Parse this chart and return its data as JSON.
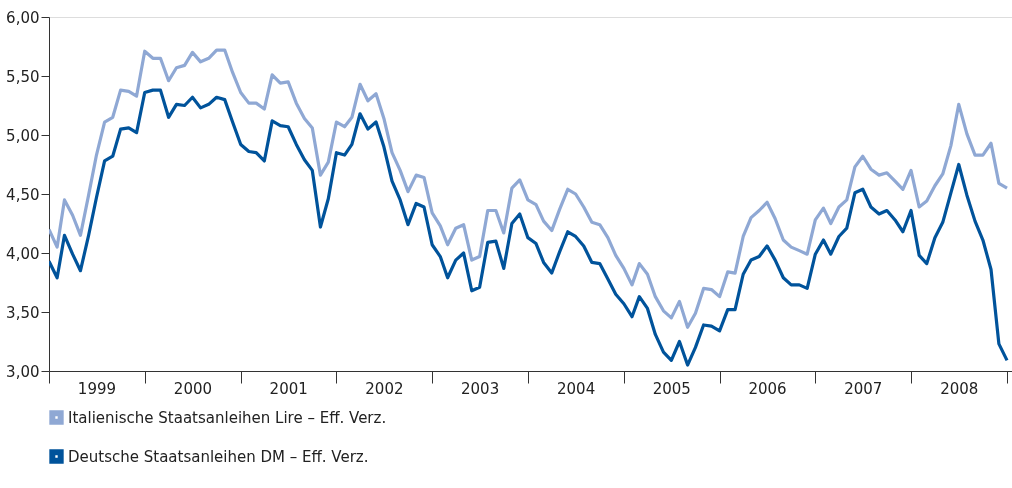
{
  "chart_data": {
    "type": "line",
    "x": [
      "1999-01",
      "1999-02",
      "1999-03",
      "1999-04",
      "1999-05",
      "1999-06",
      "1999-07",
      "1999-08",
      "1999-09",
      "1999-10",
      "1999-11",
      "1999-12",
      "2000-01",
      "2000-02",
      "2000-03",
      "2000-04",
      "2000-05",
      "2000-06",
      "2000-07",
      "2000-08",
      "2000-09",
      "2000-10",
      "2000-11",
      "2000-12",
      "2001-01",
      "2001-02",
      "2001-03",
      "2001-04",
      "2001-05",
      "2001-06",
      "2001-07",
      "2001-08",
      "2001-09",
      "2001-10",
      "2001-11",
      "2001-12",
      "2002-01",
      "2002-02",
      "2002-03",
      "2002-04",
      "2002-05",
      "2002-06",
      "2002-07",
      "2002-08",
      "2002-09",
      "2002-10",
      "2002-11",
      "2002-12",
      "2003-01",
      "2003-02",
      "2003-03",
      "2003-04",
      "2003-05",
      "2003-06",
      "2003-07",
      "2003-08",
      "2003-09",
      "2003-10",
      "2003-11",
      "2003-12",
      "2004-01",
      "2004-02",
      "2004-03",
      "2004-04",
      "2004-05",
      "2004-06",
      "2004-07",
      "2004-08",
      "2004-09",
      "2004-10",
      "2004-11",
      "2004-12",
      "2005-01",
      "2005-02",
      "2005-03",
      "2005-04",
      "2005-05",
      "2005-06",
      "2005-07",
      "2005-08",
      "2005-09",
      "2005-10",
      "2005-11",
      "2005-12",
      "2006-01",
      "2006-02",
      "2006-03",
      "2006-04",
      "2006-05",
      "2006-06",
      "2006-07",
      "2006-08",
      "2006-09",
      "2006-10",
      "2006-11",
      "2006-12",
      "2007-01",
      "2007-02",
      "2007-03",
      "2007-04",
      "2007-05",
      "2007-06",
      "2007-07",
      "2007-08",
      "2007-09",
      "2007-10",
      "2007-11",
      "2007-12",
      "2008-01",
      "2008-02",
      "2008-03",
      "2008-04",
      "2008-05",
      "2008-06",
      "2008-07",
      "2008-08",
      "2008-09",
      "2008-10",
      "2008-11",
      "2008-12",
      "2009-01"
    ],
    "series": [
      {
        "name": "Italienische Staatsanleihen Lire – Eff. Verz.",
        "color": "#8fa8d4",
        "values": [
          4.2,
          4.05,
          4.45,
          4.32,
          4.15,
          4.49,
          4.83,
          5.11,
          5.15,
          5.38,
          5.37,
          5.33,
          5.71,
          5.65,
          5.65,
          5.46,
          5.57,
          5.59,
          5.7,
          5.62,
          5.65,
          5.72,
          5.72,
          5.53,
          5.36,
          5.27,
          5.27,
          5.22,
          5.51,
          5.44,
          5.45,
          5.27,
          5.14,
          5.06,
          4.66,
          4.77,
          5.11,
          5.07,
          5.15,
          5.43,
          5.29,
          5.35,
          5.14,
          4.85,
          4.7,
          4.52,
          4.66,
          4.64,
          4.34,
          4.23,
          4.07,
          4.21,
          4.24,
          3.94,
          3.97,
          4.36,
          4.36,
          4.17,
          4.55,
          4.62,
          4.45,
          4.41,
          4.27,
          4.19,
          4.37,
          4.54,
          4.5,
          4.39,
          4.26,
          4.24,
          4.13,
          3.98,
          3.87,
          3.73,
          3.91,
          3.82,
          3.63,
          3.51,
          3.45,
          3.59,
          3.37,
          3.49,
          3.7,
          3.69,
          3.63,
          3.84,
          3.83,
          4.14,
          4.3,
          4.36,
          4.43,
          4.29,
          4.11,
          4.05,
          4.02,
          3.99,
          4.28,
          4.38,
          4.25,
          4.39,
          4.45,
          4.73,
          4.82,
          4.71,
          4.66,
          4.68,
          4.61,
          4.54,
          4.7,
          4.39,
          4.44,
          4.57,
          4.67,
          4.91,
          5.26,
          5.01,
          4.83,
          4.83,
          4.93,
          4.59,
          4.55
        ]
      },
      {
        "name": "Deutsche Staatsanleihen DM – Eff. Verz.",
        "color": "#00539b",
        "values": [
          3.93,
          3.79,
          4.15,
          3.99,
          3.85,
          4.15,
          4.47,
          4.78,
          4.82,
          5.05,
          5.06,
          5.02,
          5.36,
          5.38,
          5.38,
          5.15,
          5.26,
          5.25,
          5.32,
          5.23,
          5.26,
          5.32,
          5.3,
          5.11,
          4.92,
          4.86,
          4.85,
          4.78,
          5.12,
          5.08,
          5.07,
          4.92,
          4.79,
          4.7,
          4.22,
          4.46,
          4.85,
          4.83,
          4.92,
          5.18,
          5.05,
          5.11,
          4.9,
          4.61,
          4.45,
          4.24,
          4.42,
          4.39,
          4.07,
          3.97,
          3.79,
          3.94,
          4.0,
          3.68,
          3.71,
          4.09,
          4.1,
          3.87,
          4.25,
          4.33,
          4.13,
          4.08,
          3.92,
          3.83,
          4.01,
          4.18,
          4.14,
          4.06,
          3.92,
          3.91,
          3.78,
          3.65,
          3.57,
          3.46,
          3.63,
          3.53,
          3.31,
          3.16,
          3.09,
          3.25,
          3.05,
          3.2,
          3.39,
          3.38,
          3.34,
          3.52,
          3.52,
          3.82,
          3.94,
          3.97,
          4.06,
          3.94,
          3.79,
          3.73,
          3.73,
          3.7,
          3.99,
          4.11,
          3.99,
          4.14,
          4.21,
          4.51,
          4.54,
          4.39,
          4.33,
          4.36,
          4.28,
          4.18,
          4.36,
          3.98,
          3.91,
          4.13,
          4.26,
          4.51,
          4.75,
          4.49,
          4.27,
          4.11,
          3.86,
          3.23,
          3.09
        ]
      }
    ],
    "xlim": [
      "1999-01-01",
      "2009-01-20"
    ],
    "xticks": [
      {
        "value": "1999-01-01",
        "label": null
      },
      {
        "value": "1999-07-01",
        "label": "1999"
      },
      {
        "value": "2000-01-01",
        "label": null
      },
      {
        "value": "2000-07-01",
        "label": "2000"
      },
      {
        "value": "2001-01-01",
        "label": null
      },
      {
        "value": "2001-07-01",
        "label": "2001"
      },
      {
        "value": "2002-01-01",
        "label": null
      },
      {
        "value": "2002-07-01",
        "label": "2002"
      },
      {
        "value": "2003-01-01",
        "label": null
      },
      {
        "value": "2003-07-01",
        "label": "2003"
      },
      {
        "value": "2004-01-01",
        "label": null
      },
      {
        "value": "2004-07-01",
        "label": "2004"
      },
      {
        "value": "2005-01-01",
        "label": null
      },
      {
        "value": "2005-07-01",
        "label": "2005"
      },
      {
        "value": "2006-01-01",
        "label": null
      },
      {
        "value": "2006-07-01",
        "label": "2006"
      },
      {
        "value": "2007-01-01",
        "label": null
      },
      {
        "value": "2007-07-01",
        "label": "2007"
      },
      {
        "value": "2008-01-01",
        "label": null
      },
      {
        "value": "2008-07-01",
        "label": "2008"
      },
      {
        "value": "2009-01-01",
        "label": null
      }
    ],
    "ylim": [
      3,
      6
    ],
    "yticks": [
      {
        "value": 3,
        "label": "3,00"
      },
      {
        "value": 3.5,
        "label": "3,50"
      },
      {
        "value": 4,
        "label": "4,00"
      },
      {
        "value": 4.5,
        "label": "4,50"
      },
      {
        "value": 5,
        "label": "5,00"
      },
      {
        "value": 5.5,
        "label": "5,50"
      },
      {
        "value": 6,
        "label": "6,00"
      }
    ],
    "grid": false,
    "legend": "bottom left",
    "marker": "none",
    "line_style": "solid"
  }
}
